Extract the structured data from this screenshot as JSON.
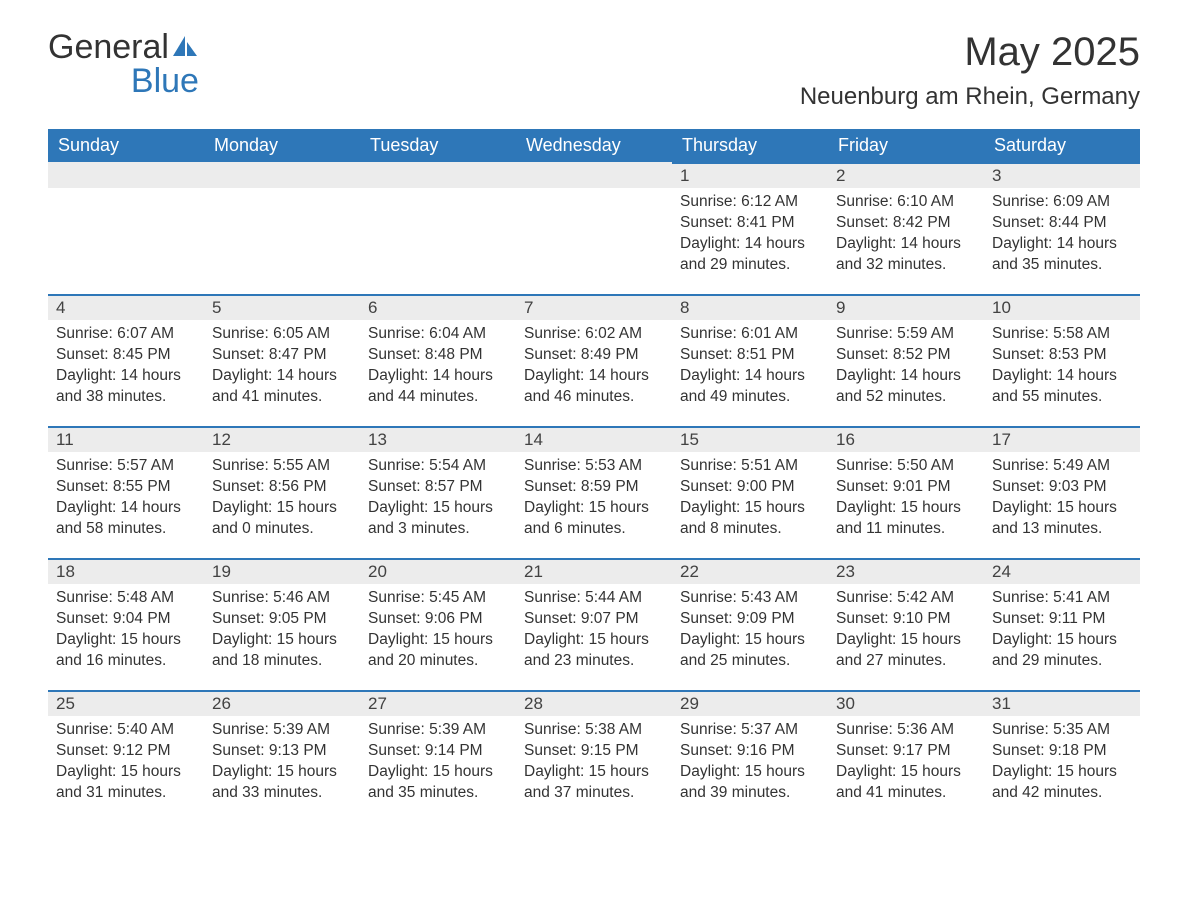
{
  "logo": {
    "word1": "General",
    "word2": "Blue"
  },
  "title": "May 2025",
  "location": "Neuenburg am Rhein, Germany",
  "colors": {
    "header_bg": "#2e77b8",
    "header_text": "#ffffff",
    "daynum_bg": "#ececec",
    "page_bg": "#ffffff",
    "body_text": "#333333"
  },
  "weekdays": [
    "Sunday",
    "Monday",
    "Tuesday",
    "Wednesday",
    "Thursday",
    "Friday",
    "Saturday"
  ],
  "weeks": [
    [
      null,
      null,
      null,
      null,
      {
        "n": "1",
        "sr": "6:12 AM",
        "ss": "8:41 PM",
        "dh": "14",
        "dm": "29"
      },
      {
        "n": "2",
        "sr": "6:10 AM",
        "ss": "8:42 PM",
        "dh": "14",
        "dm": "32"
      },
      {
        "n": "3",
        "sr": "6:09 AM",
        "ss": "8:44 PM",
        "dh": "14",
        "dm": "35"
      }
    ],
    [
      {
        "n": "4",
        "sr": "6:07 AM",
        "ss": "8:45 PM",
        "dh": "14",
        "dm": "38"
      },
      {
        "n": "5",
        "sr": "6:05 AM",
        "ss": "8:47 PM",
        "dh": "14",
        "dm": "41"
      },
      {
        "n": "6",
        "sr": "6:04 AM",
        "ss": "8:48 PM",
        "dh": "14",
        "dm": "44"
      },
      {
        "n": "7",
        "sr": "6:02 AM",
        "ss": "8:49 PM",
        "dh": "14",
        "dm": "46"
      },
      {
        "n": "8",
        "sr": "6:01 AM",
        "ss": "8:51 PM",
        "dh": "14",
        "dm": "49"
      },
      {
        "n": "9",
        "sr": "5:59 AM",
        "ss": "8:52 PM",
        "dh": "14",
        "dm": "52"
      },
      {
        "n": "10",
        "sr": "5:58 AM",
        "ss": "8:53 PM",
        "dh": "14",
        "dm": "55"
      }
    ],
    [
      {
        "n": "11",
        "sr": "5:57 AM",
        "ss": "8:55 PM",
        "dh": "14",
        "dm": "58"
      },
      {
        "n": "12",
        "sr": "5:55 AM",
        "ss": "8:56 PM",
        "dh": "15",
        "dm": "0"
      },
      {
        "n": "13",
        "sr": "5:54 AM",
        "ss": "8:57 PM",
        "dh": "15",
        "dm": "3"
      },
      {
        "n": "14",
        "sr": "5:53 AM",
        "ss": "8:59 PM",
        "dh": "15",
        "dm": "6"
      },
      {
        "n": "15",
        "sr": "5:51 AM",
        "ss": "9:00 PM",
        "dh": "15",
        "dm": "8"
      },
      {
        "n": "16",
        "sr": "5:50 AM",
        "ss": "9:01 PM",
        "dh": "15",
        "dm": "11"
      },
      {
        "n": "17",
        "sr": "5:49 AM",
        "ss": "9:03 PM",
        "dh": "15",
        "dm": "13"
      }
    ],
    [
      {
        "n": "18",
        "sr": "5:48 AM",
        "ss": "9:04 PM",
        "dh": "15",
        "dm": "16"
      },
      {
        "n": "19",
        "sr": "5:46 AM",
        "ss": "9:05 PM",
        "dh": "15",
        "dm": "18"
      },
      {
        "n": "20",
        "sr": "5:45 AM",
        "ss": "9:06 PM",
        "dh": "15",
        "dm": "20"
      },
      {
        "n": "21",
        "sr": "5:44 AM",
        "ss": "9:07 PM",
        "dh": "15",
        "dm": "23"
      },
      {
        "n": "22",
        "sr": "5:43 AM",
        "ss": "9:09 PM",
        "dh": "15",
        "dm": "25"
      },
      {
        "n": "23",
        "sr": "5:42 AM",
        "ss": "9:10 PM",
        "dh": "15",
        "dm": "27"
      },
      {
        "n": "24",
        "sr": "5:41 AM",
        "ss": "9:11 PM",
        "dh": "15",
        "dm": "29"
      }
    ],
    [
      {
        "n": "25",
        "sr": "5:40 AM",
        "ss": "9:12 PM",
        "dh": "15",
        "dm": "31"
      },
      {
        "n": "26",
        "sr": "5:39 AM",
        "ss": "9:13 PM",
        "dh": "15",
        "dm": "33"
      },
      {
        "n": "27",
        "sr": "5:39 AM",
        "ss": "9:14 PM",
        "dh": "15",
        "dm": "35"
      },
      {
        "n": "28",
        "sr": "5:38 AM",
        "ss": "9:15 PM",
        "dh": "15",
        "dm": "37"
      },
      {
        "n": "29",
        "sr": "5:37 AM",
        "ss": "9:16 PM",
        "dh": "15",
        "dm": "39"
      },
      {
        "n": "30",
        "sr": "5:36 AM",
        "ss": "9:17 PM",
        "dh": "15",
        "dm": "41"
      },
      {
        "n": "31",
        "sr": "5:35 AM",
        "ss": "9:18 PM",
        "dh": "15",
        "dm": "42"
      }
    ]
  ],
  "labels": {
    "sunrise": "Sunrise: ",
    "sunset": "Sunset: ",
    "daylight": "Daylight: ",
    "hours": " hours",
    "and": "and ",
    "minutes": " minutes."
  }
}
